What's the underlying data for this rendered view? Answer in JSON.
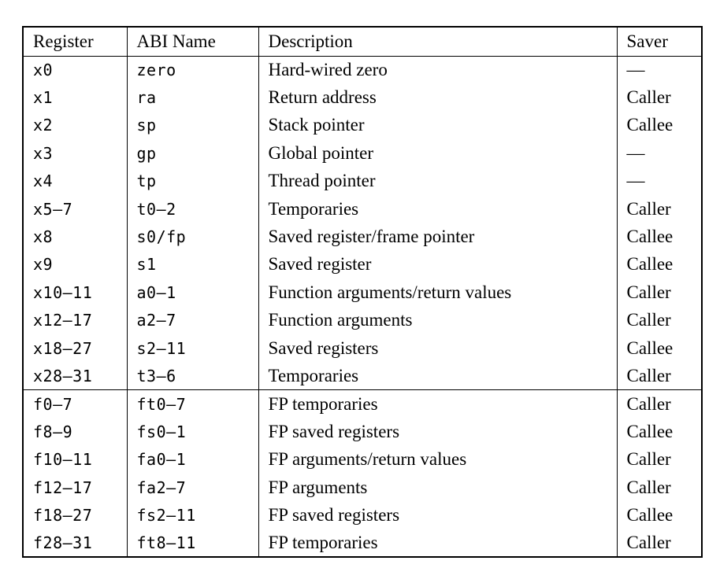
{
  "table": {
    "columns": [
      "Register",
      "ABI Name",
      "Description",
      "Saver"
    ],
    "integer_rows": [
      {
        "register": "x0",
        "abi": "zero",
        "description": "Hard-wired zero",
        "saver": "—"
      },
      {
        "register": "x1",
        "abi": "ra",
        "description": "Return address",
        "saver": "Caller"
      },
      {
        "register": "x2",
        "abi": "sp",
        "description": "Stack pointer",
        "saver": "Callee"
      },
      {
        "register": "x3",
        "abi": "gp",
        "description": "Global pointer",
        "saver": "—"
      },
      {
        "register": "x4",
        "abi": "tp",
        "description": "Thread pointer",
        "saver": "—"
      },
      {
        "register": "x5–7",
        "abi": "t0–2",
        "description": "Temporaries",
        "saver": "Caller"
      },
      {
        "register": "x8",
        "abi": "s0/fp",
        "description": "Saved register/frame pointer",
        "saver": "Callee"
      },
      {
        "register": "x9",
        "abi": "s1",
        "description": "Saved register",
        "saver": "Callee"
      },
      {
        "register": "x10–11",
        "abi": "a0–1",
        "description": "Function arguments/return values",
        "saver": "Caller"
      },
      {
        "register": "x12–17",
        "abi": "a2–7",
        "description": "Function arguments",
        "saver": "Caller"
      },
      {
        "register": "x18–27",
        "abi": "s2–11",
        "description": "Saved registers",
        "saver": "Callee"
      },
      {
        "register": "x28–31",
        "abi": "t3–6",
        "description": "Temporaries",
        "saver": "Caller"
      }
    ],
    "fp_rows": [
      {
        "register": "f0–7",
        "abi": "ft0–7",
        "description": "FP temporaries",
        "saver": "Caller"
      },
      {
        "register": "f8–9",
        "abi": "fs0–1",
        "description": "FP saved registers",
        "saver": "Callee"
      },
      {
        "register": "f10–11",
        "abi": "fa0–1",
        "description": "FP arguments/return values",
        "saver": "Caller"
      },
      {
        "register": "f12–17",
        "abi": "fa2–7",
        "description": "FP arguments",
        "saver": "Caller"
      },
      {
        "register": "f18–27",
        "abi": "fs2–11",
        "description": "FP saved registers",
        "saver": "Callee"
      },
      {
        "register": "f28–31",
        "abi": "ft8–11",
        "description": "FP temporaries",
        "saver": "Caller"
      }
    ]
  },
  "colors": {
    "background": "#ffffff",
    "border": "#000000",
    "text": "#000000"
  }
}
